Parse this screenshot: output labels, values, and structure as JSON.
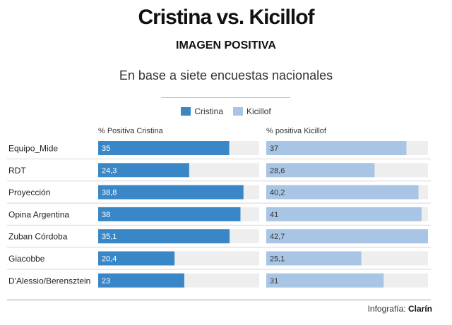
{
  "header": {
    "title": "Cristina vs. Kicillof",
    "subtitle": "IMAGEN POSITIVA",
    "description": "En base a siete encuestas nacionales"
  },
  "legend": [
    {
      "name": "Cristina",
      "color": "#3a87c8"
    },
    {
      "name": "Kicillof",
      "color": "#a9c5e6"
    }
  ],
  "column_headers": {
    "cristina": "% Positiva Cristina",
    "kicillof": "% positiva Kicillof"
  },
  "chart_data": {
    "type": "bar",
    "orientation": "horizontal",
    "categories": [
      "Equipo_Mide",
      "RDT",
      "Proyección",
      "Opina Argentina",
      "Zuban Córdoba",
      "Giacobbe",
      "D'Alessio/Berensztein"
    ],
    "series": [
      {
        "name": "Cristina",
        "color": "#3a87c8",
        "values": [
          35,
          24.3,
          38.8,
          38,
          35.1,
          20.4,
          23
        ],
        "labels": [
          "35",
          "24,3",
          "38,8",
          "38",
          "35,1",
          "20,4",
          "23"
        ]
      },
      {
        "name": "Kicillof",
        "color": "#a9c5e6",
        "values": [
          37,
          28.6,
          40.2,
          41,
          42.7,
          25.1,
          31
        ],
        "labels": [
          "37",
          "28,6",
          "40,2",
          "41",
          "42,7",
          "25,1",
          "31"
        ]
      }
    ],
    "cristina_max": 43,
    "kicillof_max": 42.7,
    "track_color": "#eeeeee"
  },
  "footer": {
    "credit_prefix": "Infografía:",
    "credit_brand": "Clarín"
  }
}
